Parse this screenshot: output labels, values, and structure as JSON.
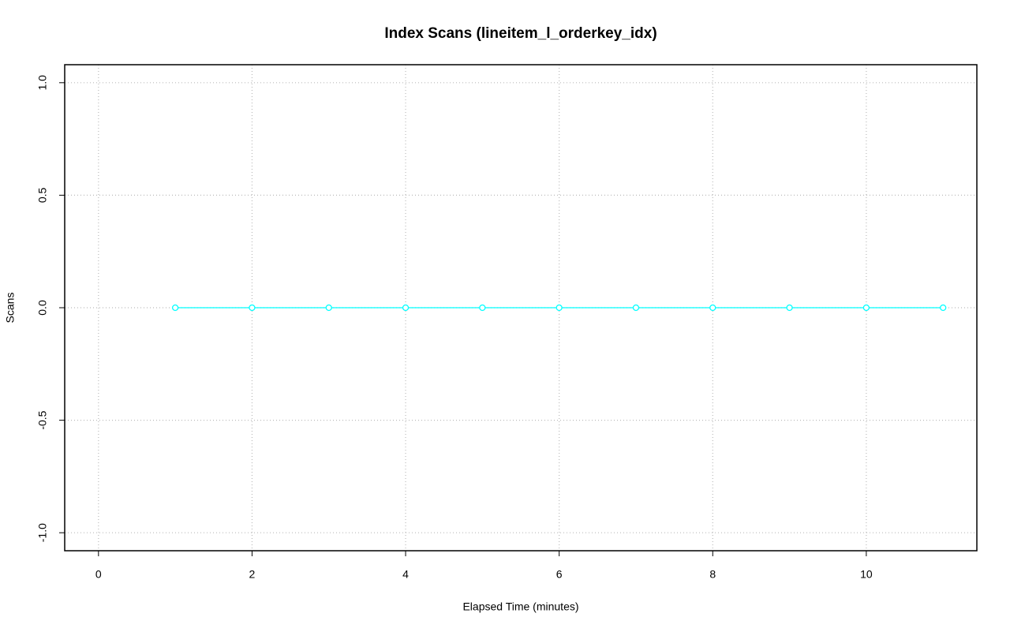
{
  "chart_data": {
    "type": "line",
    "title": "Index Scans (lineitem_l_orderkey_idx)",
    "x_label": "Elapsed Time (minutes)",
    "y_label": "Scans",
    "x": [
      1,
      2,
      3,
      4,
      5,
      6,
      7,
      8,
      9,
      10,
      11
    ],
    "series": [
      {
        "name": "lineitem_l_orderkey_idx",
        "color": "#00ffff",
        "values": [
          0,
          0,
          0,
          0,
          0,
          0,
          0,
          0,
          0,
          0,
          0
        ]
      }
    ],
    "xlim": [
      -0.44,
      11.44
    ],
    "xticks": [
      0,
      2,
      4,
      6,
      8,
      10
    ],
    "ylim": [
      -1.08,
      1.08
    ],
    "yticks": [
      {
        "value": -1,
        "label": "-1.0"
      },
      {
        "value": -0.5,
        "label": "-0.5"
      },
      {
        "value": 0,
        "label": "0.0"
      },
      {
        "value": 0.5,
        "label": "0.5"
      },
      {
        "value": 1,
        "label": "1.0"
      }
    ],
    "grid": true
  }
}
